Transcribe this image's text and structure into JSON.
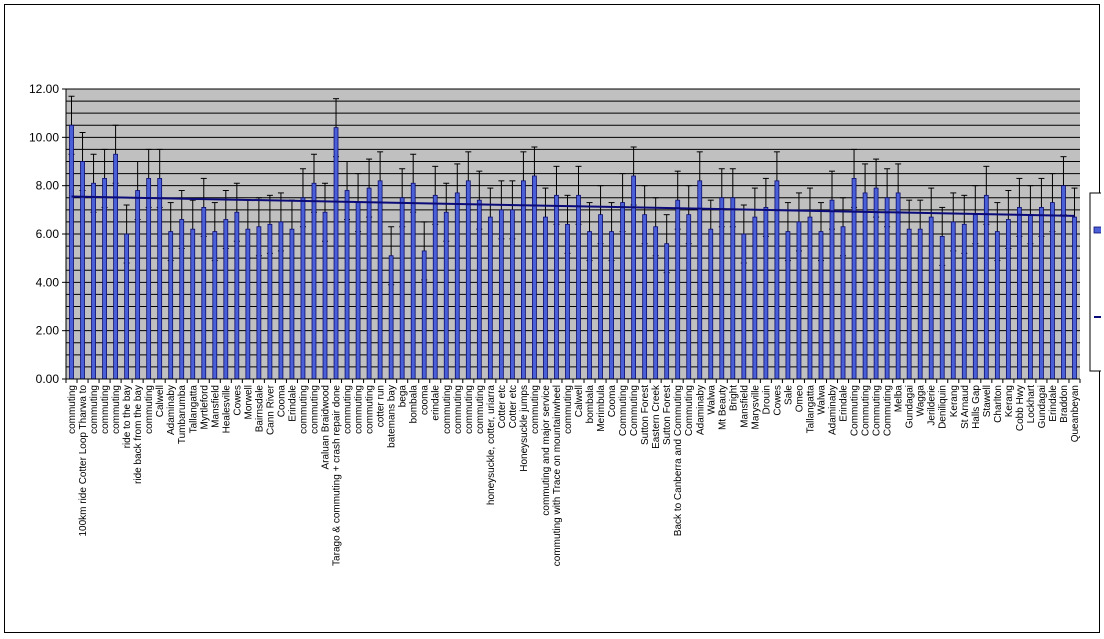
{
  "chart_data": {
    "type": "bar",
    "title": "",
    "xlabel": "",
    "ylabel": "",
    "ylim": [
      0,
      12
    ],
    "yticks": [
      "0.00",
      "2.00",
      "4.00",
      "6.00",
      "8.00",
      "10.00",
      "12.00"
    ],
    "grid": true,
    "legend_position": "right",
    "colors": {
      "bar": "#4a60d8",
      "bar_edge": "#0c0c70",
      "trend": "#0a0a78",
      "plot_bg": "#c0c0c0",
      "grid": "#000000"
    },
    "categories": [
      "commuting",
      "100km ride Cotter Loop Tharwa to",
      "commuting",
      "commuting",
      "commuting",
      "ride to the bay",
      "ride back from the bay",
      "commuting",
      "Calwell",
      "Adaminaby",
      "Tumbarumba",
      "Tallangatta",
      "Myrtleford",
      "Mansfield",
      "Healesville",
      "Cowes",
      "Morwell",
      "Bairnsdale",
      "Cann River",
      "Cooma",
      "Erindale",
      "commuting",
      "commuting",
      "Araluan Braidwood",
      "Tarago & commuting + crash repair done",
      "commuting",
      "commuting",
      "commuting",
      "cotter run",
      "batemans bay",
      "bega",
      "bombala",
      "cooma",
      "erindale",
      "commuting",
      "commuting",
      "commuting",
      "commuting",
      "honeysuckle, cotter, uriarra",
      "Cotter etc",
      "Cotter etc",
      "Honeysuckle jumps",
      "commuting",
      "commuting and major service",
      "commuting with Trace on mountainwheel",
      "commuting",
      "Calwell",
      "bombala",
      "Merimbula",
      "Cooma",
      "Commuting",
      "Commuting",
      "Sutton Forest",
      "Eastern Creek",
      "Sutton Forest",
      "Back to Canberra and Commuting",
      "Commuting",
      "Adaminaby",
      "Walwa",
      "Mt Beauty",
      "Bright",
      "Mansfield",
      "Marysville",
      "Drouin",
      "Cowes",
      "Sale",
      "Omeo",
      "Tallangatta",
      "Walwa",
      "Adaminaby",
      "Erindale",
      "Commuting",
      "Commuting",
      "Commuting",
      "Commuting",
      "Melba",
      "Gundagai",
      "Wagga",
      "Jerilderie",
      "Deniliquin",
      "Kerang",
      "St Arnaud",
      "Halls Gap",
      "Stawell",
      "Charlton",
      "Kerang",
      "Cobb Hwy",
      "Lockhart",
      "Gundagai",
      "Erindale",
      "Braddon",
      "Queanbeyan"
    ],
    "values": [
      10.5,
      9.0,
      8.1,
      8.3,
      9.3,
      6.0,
      7.8,
      8.3,
      8.3,
      6.1,
      6.6,
      6.2,
      7.1,
      6.1,
      6.6,
      6.9,
      6.2,
      6.3,
      6.4,
      6.5,
      6.2,
      7.5,
      8.1,
      6.9,
      10.4,
      7.8,
      7.3,
      7.9,
      8.2,
      5.1,
      7.5,
      8.1,
      5.3,
      7.6,
      6.9,
      7.7,
      8.2,
      7.4,
      6.7,
      7.0,
      7.0,
      8.2,
      8.4,
      6.7,
      7.6,
      6.4,
      7.6,
      6.1,
      6.8,
      6.1,
      7.3,
      8.4,
      6.8,
      6.3,
      5.6,
      7.4,
      6.8,
      8.2,
      6.2,
      7.5,
      7.5,
      6.0,
      6.7,
      7.1,
      8.2,
      6.1,
      6.5,
      6.7,
      6.1,
      7.4,
      6.3,
      8.3,
      7.7,
      7.9,
      7.5,
      7.7,
      6.2,
      6.2,
      6.7,
      5.9,
      6.5,
      6.4,
      6.8,
      7.6,
      6.1,
      6.6,
      7.1,
      6.8,
      7.1,
      7.3,
      8.0,
      6.7
    ],
    "error_bar": 1.2,
    "trend": {
      "start": 7.55,
      "end": 6.75
    }
  }
}
